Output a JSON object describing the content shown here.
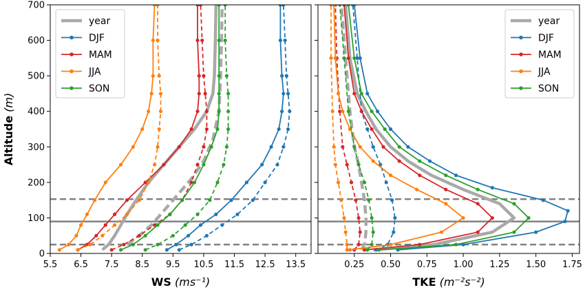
{
  "colors": {
    "year": "#a9a9a9",
    "DJF": "#1f77b4",
    "MAM": "#d62728",
    "JJA": "#ff7f0e",
    "SON": "#2ca02c",
    "reference_lines": "#808080"
  },
  "chart_data": [
    {
      "type": "line",
      "title": "",
      "xlabel_bold": "WS",
      "xlabel_rest": "(ms⁻¹)",
      "ylabel_bold": "Altitude",
      "ylabel_rest": "(m)",
      "xlim": [
        5.5,
        14.0
      ],
      "ylim": [
        0,
        700
      ],
      "xticks": [
        5.5,
        6.5,
        7.5,
        8.5,
        9.5,
        10.5,
        11.5,
        12.5,
        13.5
      ],
      "xtick_labels": [
        "5.5",
        "6.5",
        "7.5",
        "8.5",
        "9.5",
        "10.5",
        "11.5",
        "12.5",
        "13.5"
      ],
      "yticks": [
        0,
        100,
        200,
        300,
        400,
        500,
        600,
        700
      ],
      "ytick_labels": [
        "0",
        "100",
        "200",
        "300",
        "400",
        "500",
        "600",
        "700"
      ],
      "legend": {
        "placement": "top-left",
        "entries": [
          "year",
          "DJF",
          "MAM",
          "JJA",
          "SON"
        ]
      },
      "reference_lines": [
        {
          "y": 25,
          "style": "dashed"
        },
        {
          "y": 90,
          "style": "solid"
        },
        {
          "y": 153,
          "style": "dashed"
        }
      ],
      "series": [
        {
          "name": "year",
          "style": "solid",
          "x": [
            7.2,
            7.4,
            7.6,
            7.8,
            8.0,
            8.3,
            8.7,
            9.2,
            9.7,
            10.2,
            10.6,
            10.8,
            10.85,
            10.88,
            10.9
          ],
          "y": [
            10,
            25,
            50,
            80,
            110,
            150,
            200,
            250,
            300,
            350,
            400,
            450,
            500,
            600,
            700
          ]
        },
        {
          "name": "year",
          "style": "dashed",
          "x": [
            8.0,
            8.4,
            8.8,
            9.2,
            9.6,
            10.1,
            10.5,
            10.8,
            11.0,
            11.05,
            11.08,
            11.1
          ],
          "y": [
            25,
            50,
            80,
            120,
            160,
            210,
            260,
            320,
            400,
            500,
            600,
            700
          ]
        },
        {
          "name": "DJF",
          "style": "solid",
          "x": [
            9.3,
            9.6,
            10.0,
            10.4,
            10.9,
            11.4,
            11.9,
            12.4,
            12.7,
            12.95,
            13.05,
            13.1,
            13.05,
            13.0,
            13.0
          ],
          "y": [
            10,
            25,
            50,
            80,
            110,
            150,
            200,
            250,
            300,
            350,
            400,
            450,
            500,
            600,
            700
          ]
        },
        {
          "name": "DJF",
          "style": "dashed",
          "x": [
            9.7,
            10.1,
            10.6,
            11.1,
            11.6,
            12.1,
            12.5,
            12.9,
            13.1,
            13.25,
            13.3,
            13.25,
            13.2,
            13.15,
            13.1
          ],
          "y": [
            10,
            25,
            50,
            80,
            110,
            150,
            200,
            250,
            300,
            350,
            400,
            450,
            500,
            600,
            700
          ]
        },
        {
          "name": "MAM",
          "style": "solid",
          "x": [
            6.4,
            6.7,
            7.0,
            7.3,
            7.6,
            8.0,
            8.6,
            9.2,
            9.7,
            10.1,
            10.3,
            10.35,
            10.35,
            10.3,
            10.3
          ],
          "y": [
            10,
            25,
            50,
            80,
            110,
            150,
            200,
            250,
            300,
            350,
            400,
            450,
            500,
            600,
            700
          ]
        },
        {
          "name": "MAM",
          "style": "dashed",
          "x": [
            7.5,
            7.9,
            8.4,
            8.9,
            9.4,
            9.8,
            10.1,
            10.3,
            10.5,
            10.6,
            10.6,
            10.55,
            10.5,
            10.45,
            10.4
          ],
          "y": [
            10,
            25,
            50,
            80,
            110,
            150,
            200,
            250,
            300,
            350,
            400,
            450,
            500,
            600,
            700
          ]
        },
        {
          "name": "JJA",
          "style": "solid",
          "x": [
            5.8,
            6.1,
            6.35,
            6.5,
            6.7,
            6.95,
            7.3,
            7.8,
            8.2,
            8.5,
            8.7,
            8.8,
            8.85,
            8.85,
            8.9
          ],
          "y": [
            10,
            25,
            50,
            80,
            110,
            150,
            200,
            250,
            300,
            350,
            400,
            450,
            500,
            600,
            700
          ]
        },
        {
          "name": "JJA",
          "style": "dashed",
          "x": [
            6.4,
            6.8,
            7.2,
            7.6,
            8.0,
            8.4,
            8.7,
            8.9,
            9.0,
            9.05,
            9.1,
            9.1,
            9.05,
            9.0,
            9.0
          ],
          "y": [
            10,
            25,
            50,
            80,
            110,
            150,
            200,
            250,
            300,
            350,
            400,
            450,
            500,
            600,
            700
          ]
        },
        {
          "name": "SON",
          "style": "solid",
          "x": [
            7.8,
            8.2,
            8.6,
            9.0,
            9.4,
            9.8,
            10.2,
            10.5,
            10.75,
            10.95,
            11.0,
            11.0,
            11.0,
            11.0,
            11.0
          ],
          "y": [
            10,
            25,
            50,
            80,
            110,
            150,
            200,
            250,
            300,
            350,
            400,
            450,
            500,
            600,
            700
          ]
        },
        {
          "name": "SON",
          "style": "dashed",
          "x": [
            8.6,
            9.0,
            9.5,
            9.9,
            10.3,
            10.7,
            10.95,
            11.15,
            11.25,
            11.3,
            11.3,
            11.3,
            11.25,
            11.2,
            11.2
          ],
          "y": [
            10,
            25,
            50,
            80,
            110,
            150,
            200,
            250,
            300,
            350,
            400,
            450,
            500,
            600,
            700
          ]
        }
      ]
    },
    {
      "type": "line",
      "title": "",
      "xlabel_bold": "TKE",
      "xlabel_rest": "(m⁻²s⁻²)",
      "xlim": [
        0.0,
        1.8
      ],
      "ylim": [
        0,
        700
      ],
      "xticks": [
        0.25,
        0.5,
        0.75,
        1.0,
        1.25,
        1.5,
        1.75
      ],
      "xtick_labels": [
        "0.25",
        "0.50",
        "0.75",
        "1.00",
        "1.25",
        "1.50",
        "1.75"
      ],
      "legend": {
        "placement": "top-right",
        "entries": [
          "year",
          "DJF",
          "MAM",
          "JJA",
          "SON"
        ]
      },
      "reference_lines": [
        {
          "y": 25,
          "style": "dashed"
        },
        {
          "y": 90,
          "style": "solid"
        },
        {
          "y": 153,
          "style": "dashed"
        }
      ],
      "series": [
        {
          "name": "year",
          "style": "solid",
          "x": [
            0.38,
            0.8,
            1.2,
            1.35,
            1.25,
            1.0,
            0.78,
            0.62,
            0.5,
            0.4,
            0.33,
            0.27,
            0.22,
            0.19
          ],
          "y": [
            10,
            25,
            60,
            100,
            140,
            180,
            220,
            260,
            300,
            350,
            400,
            450,
            550,
            700
          ]
        },
        {
          "name": "year",
          "style": "dashed",
          "x": [
            0.3,
            0.32,
            0.33,
            0.33,
            0.32,
            0.3,
            0.28,
            0.25,
            0.22,
            0.19,
            0.16
          ],
          "y": [
            10,
            25,
            60,
            100,
            150,
            200,
            250,
            300,
            400,
            550,
            700
          ]
        },
        {
          "name": "DJF",
          "style": "solid",
          "x": [
            0.55,
            1.0,
            1.5,
            1.7,
            1.72,
            1.55,
            1.2,
            0.95,
            0.77,
            0.62,
            0.5,
            0.41,
            0.34,
            0.29,
            0.25
          ],
          "y": [
            10,
            25,
            60,
            90,
            120,
            150,
            185,
            220,
            260,
            300,
            350,
            400,
            450,
            550,
            700
          ]
        },
        {
          "name": "DJF",
          "style": "dashed",
          "x": [
            0.4,
            0.48,
            0.52,
            0.53,
            0.51,
            0.47,
            0.43,
            0.38,
            0.34,
            0.3,
            0.27,
            0.24
          ],
          "y": [
            10,
            25,
            60,
            100,
            150,
            200,
            250,
            300,
            350,
            400,
            550,
            700
          ]
        },
        {
          "name": "MAM",
          "style": "solid",
          "x": [
            0.32,
            0.7,
            1.1,
            1.2,
            1.1,
            0.88,
            0.7,
            0.56,
            0.45,
            0.37,
            0.3,
            0.25,
            0.21,
            0.18
          ],
          "y": [
            10,
            25,
            60,
            100,
            140,
            180,
            220,
            260,
            300,
            350,
            400,
            450,
            550,
            700
          ]
        },
        {
          "name": "MAM",
          "style": "dashed",
          "x": [
            0.25,
            0.28,
            0.29,
            0.28,
            0.26,
            0.23,
            0.2,
            0.17,
            0.15,
            0.13,
            0.12
          ],
          "y": [
            10,
            25,
            60,
            100,
            150,
            200,
            250,
            300,
            400,
            550,
            700
          ]
        },
        {
          "name": "JJA",
          "style": "solid",
          "x": [
            0.22,
            0.5,
            0.85,
            1.0,
            0.88,
            0.68,
            0.5,
            0.38,
            0.29,
            0.22,
            0.17,
            0.14,
            0.12,
            0.11
          ],
          "y": [
            10,
            25,
            60,
            100,
            140,
            180,
            220,
            260,
            300,
            350,
            400,
            450,
            550,
            700
          ]
        },
        {
          "name": "JJA",
          "style": "dashed",
          "x": [
            0.2,
            0.2,
            0.19,
            0.18,
            0.16,
            0.14,
            0.12,
            0.11,
            0.1,
            0.09,
            0.09
          ],
          "y": [
            10,
            25,
            60,
            100,
            150,
            200,
            250,
            300,
            400,
            550,
            700
          ]
        },
        {
          "name": "SON",
          "style": "solid",
          "x": [
            0.42,
            0.95,
            1.35,
            1.45,
            1.35,
            1.1,
            0.88,
            0.7,
            0.56,
            0.46,
            0.37,
            0.3,
            0.25,
            0.21
          ],
          "y": [
            10,
            25,
            60,
            100,
            140,
            180,
            220,
            260,
            300,
            350,
            400,
            450,
            550,
            700
          ]
        },
        {
          "name": "SON",
          "style": "dashed",
          "x": [
            0.34,
            0.37,
            0.38,
            0.37,
            0.35,
            0.32,
            0.28,
            0.25,
            0.21,
            0.18,
            0.15
          ],
          "y": [
            10,
            25,
            60,
            100,
            150,
            200,
            250,
            300,
            400,
            550,
            700
          ]
        }
      ]
    }
  ]
}
